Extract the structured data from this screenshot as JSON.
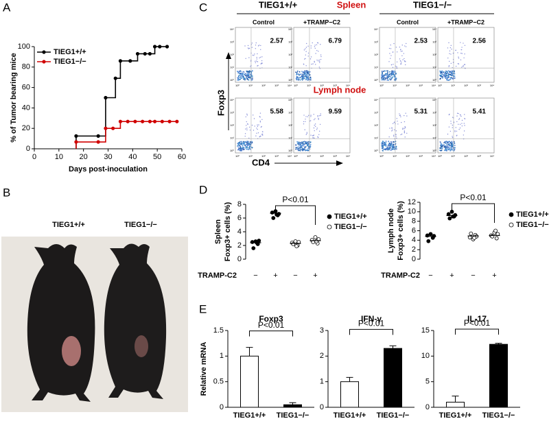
{
  "panel_labels": [
    "A",
    "B",
    "C",
    "D",
    "E"
  ],
  "chart_data": [
    {
      "type": "line",
      "step": true,
      "ylabel": "% of Tumor bearing mice",
      "xlabel": "Days post-inoculation",
      "xlim": [
        0,
        60
      ],
      "xticks": [
        0,
        10,
        20,
        30,
        40,
        50,
        60
      ],
      "ylim": [
        0,
        100
      ],
      "yticks": [
        0,
        20,
        40,
        60,
        80,
        100
      ],
      "grid": false,
      "legend": "upper left",
      "series": [
        {
          "name": "TIEG1+/+",
          "color": "#000000",
          "x": [
            17,
            26,
            29,
            33,
            35,
            39,
            42,
            45,
            47,
            49,
            51,
            54
          ],
          "values": [
            12.5,
            12.5,
            50,
            69,
            86,
            86,
            93,
            93,
            93,
            100,
            100,
            100
          ]
        },
        {
          "name": "TIEG1−/−",
          "color": "#d00000",
          "x": [
            17,
            26,
            29,
            32,
            35,
            38,
            41,
            44,
            47,
            49,
            52,
            55,
            58
          ],
          "values": [
            6.7,
            6.7,
            20,
            20,
            26.7,
            26.7,
            26.7,
            26.7,
            26.7,
            26.7,
            26.7,
            26.7,
            26.7
          ]
        }
      ]
    },
    {
      "type": "strip",
      "ylabel": [
        "Spleen",
        "Foxp3+ cells (%)"
      ],
      "categories": [
        "−",
        "+",
        "−",
        "+"
      ],
      "category_label": "TRAMP-C2",
      "ylim": [
        0,
        8
      ],
      "yticks": [
        0,
        2,
        4,
        6,
        8
      ],
      "annotation": "P<0.01",
      "series": [
        {
          "name": "TIEG1+/+",
          "color": "#000000",
          "values": [
            [
              2.5,
              2.2,
              2.6,
              1.6,
              2.7,
              2.4
            ],
            [
              6.8,
              6.4,
              7.0,
              6.0,
              6.6,
              6.5
            ],
            null,
            null
          ],
          "means": [
            2.4,
            6.7,
            null,
            null
          ]
        },
        {
          "name": "TIEG1−/−",
          "color": "#ffffff",
          "values": [
            null,
            null,
            [
              2.4,
              2.0,
              2.6,
              2.2,
              2.5,
              1.9
            ],
            [
              2.8,
              2.3,
              3.2,
              2.5,
              2.9,
              2.6
            ]
          ],
          "means": [
            null,
            null,
            2.3,
            2.7
          ]
        }
      ]
    },
    {
      "type": "strip",
      "ylabel": [
        "Lymph node",
        "Foxp3+ cells (%)"
      ],
      "categories": [
        "−",
        "+",
        "−",
        "+"
      ],
      "category_label": "TRAMP-C2",
      "ylim": [
        0,
        12
      ],
      "yticks": [
        0,
        2,
        4,
        6,
        8,
        10,
        12
      ],
      "annotation": "P<0.01",
      "series": [
        {
          "name": "TIEG1+/+",
          "color": "#000000",
          "values": [
            [
              5.0,
              4.5,
              5.3,
              3.8,
              4.9
            ],
            [
              9.5,
              9.0,
              10.0,
              8.6,
              9.3,
              9.0
            ],
            null,
            null
          ],
          "means": [
            4.8,
            9.2,
            null,
            null
          ]
        },
        {
          "name": "TIEG1−/−",
          "color": "#ffffff",
          "values": [
            null,
            null,
            [
              4.6,
              5.1,
              4.2,
              5.4,
              4.8,
              4.5
            ],
            [
              5.0,
              4.4,
              5.6,
              4.8,
              5.3,
              6.0
            ]
          ],
          "means": [
            null,
            null,
            4.9,
            5.0
          ]
        }
      ]
    },
    {
      "type": "bar",
      "title": "Foxp3",
      "ylabel": "Relative mRNA",
      "categories": [
        "TIEG1+/+",
        "TIEG1−/−"
      ],
      "values": [
        1.0,
        0.05
      ],
      "errors": [
        0.17,
        0.04
      ],
      "colors": [
        "#ffffff",
        "#000000"
      ],
      "ylim": [
        0,
        1.5
      ],
      "yticks": [
        0,
        0.5,
        1,
        1.5
      ],
      "annotation": "P<0.01"
    },
    {
      "type": "bar",
      "title": "IFN-γ",
      "categories": [
        "TIEG1+/+",
        "TIEG1−/−"
      ],
      "values": [
        1.0,
        2.3
      ],
      "errors": [
        0.17,
        0.1
      ],
      "colors": [
        "#ffffff",
        "#000000"
      ],
      "ylim": [
        0,
        3
      ],
      "yticks": [
        0,
        1,
        2,
        3
      ],
      "annotation": "P<0.01"
    },
    {
      "type": "bar",
      "title": "IL-17",
      "categories": [
        "TIEG1+/+",
        "TIEG1−/−"
      ],
      "values": [
        1.0,
        12.3
      ],
      "errors": [
        1.2,
        0.2
      ],
      "colors": [
        "#ffffff",
        "#000000"
      ],
      "ylim": [
        0,
        15
      ],
      "yticks": [
        0,
        5,
        10,
        15
      ],
      "annotation": "P<0.01"
    }
  ],
  "photo": {
    "labels": [
      "TIEG1+/+",
      "TIEG1−/−"
    ]
  },
  "flow": {
    "headers": [
      "TIEG1+/+",
      "Spleen",
      "TIEG1−/−"
    ],
    "columns": [
      "Control",
      "+TRAMP−C2",
      "Control",
      "+TRAMP−C2"
    ],
    "row_label": "Lymph node",
    "ylabel": "Foxp3",
    "xlabel": "CD4",
    "axis_ticks": [
      "10⁰",
      "10¹",
      "10²",
      "10³",
      "10⁴"
    ],
    "percentages": [
      [
        "2.57",
        "6.79",
        "2.53",
        "2.56"
      ],
      [
        "5.58",
        "9.59",
        "5.31",
        "5.41"
      ]
    ]
  }
}
